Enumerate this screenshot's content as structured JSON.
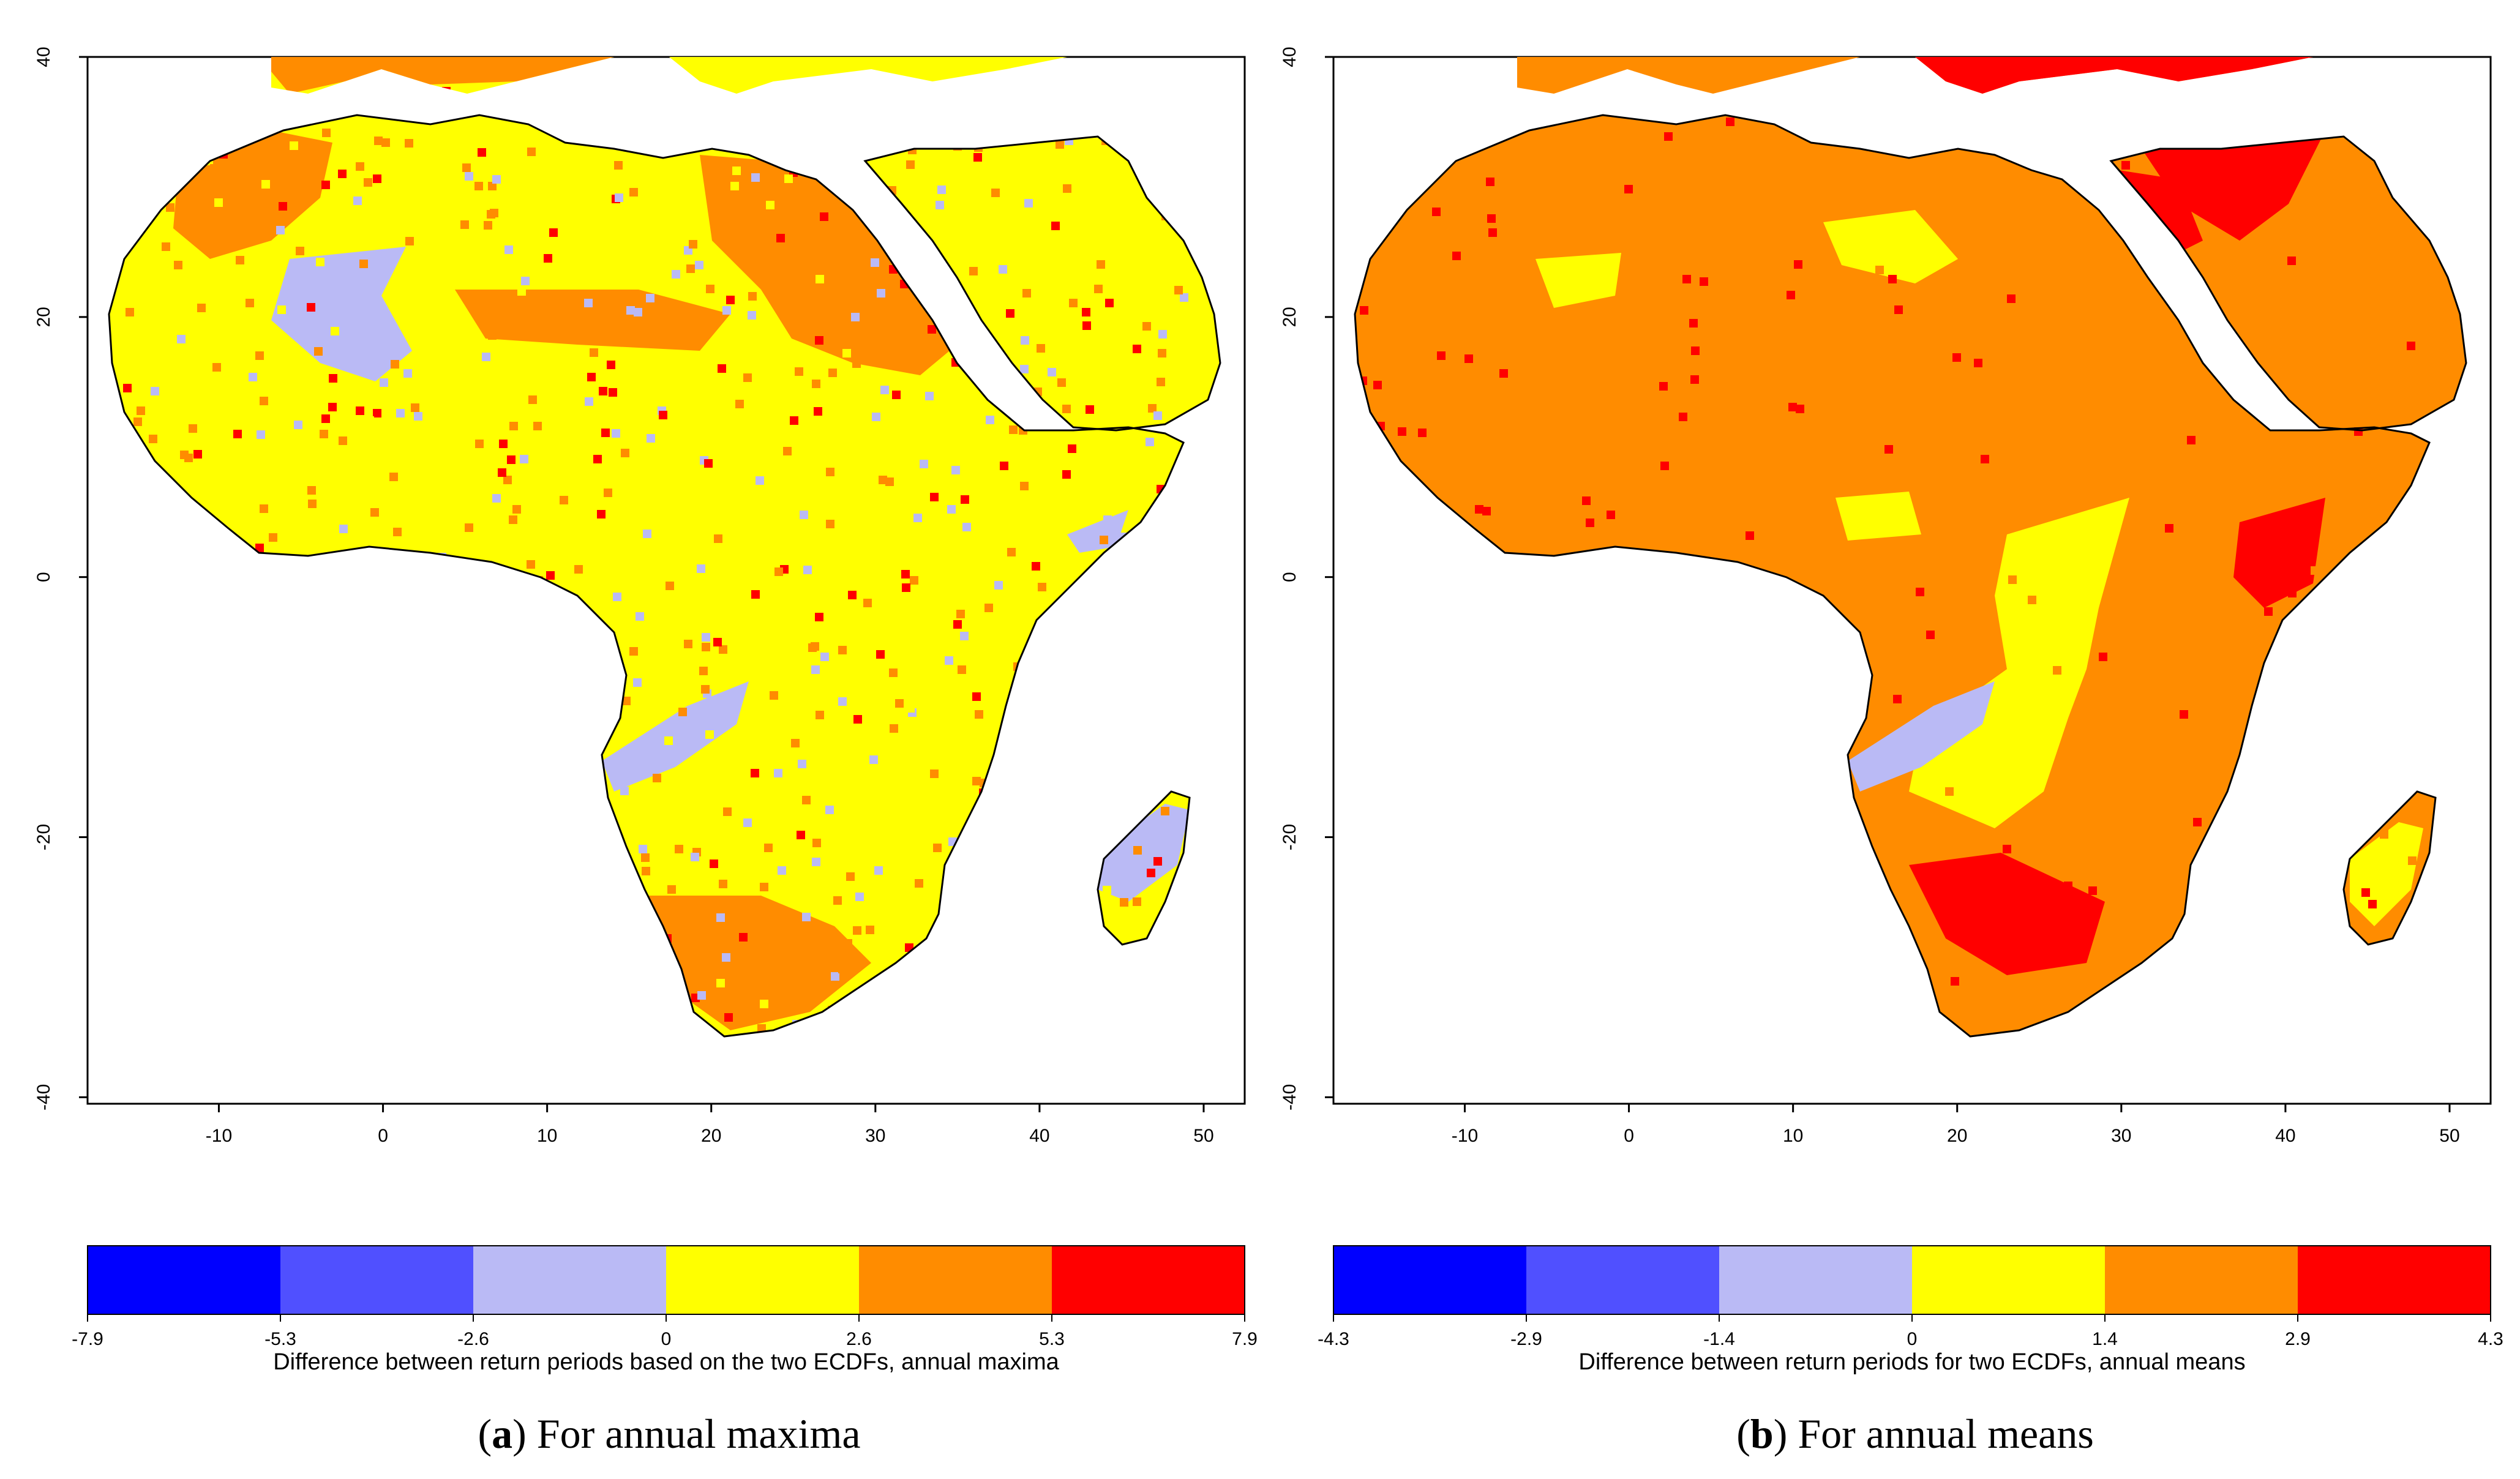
{
  "colors": {
    "land_ocean_background": "#ffffff",
    "coast": "#000000",
    "blue_dark": "#0000ff",
    "blue_mid": "#5050ff",
    "lavender": "#babaf5",
    "yellow": "#ffff00",
    "orange": "#ff8c00",
    "red": "#ff0000"
  },
  "axes": {
    "x_ticks": [
      "-10",
      "0",
      "10",
      "20",
      "30",
      "40",
      "50"
    ],
    "y_ticks": [
      "40",
      "20",
      "0",
      "-20",
      "-40"
    ],
    "x_range": [
      -18,
      52.5
    ],
    "y_range": [
      -40.5,
      40
    ]
  },
  "panels": [
    {
      "id": "a",
      "caption_label": "a",
      "caption_text": "For annual maxima",
      "colorbar_title": "Difference between return periods based on the two ECDFs, annual maxima",
      "colorbar_ticks": [
        "-7.9",
        "-5.3",
        "-2.6",
        "0",
        "2.6",
        "5.3",
        "7.9"
      ],
      "colorbar_colors": [
        "#0000ff",
        "#5050ff",
        "#babaf5",
        "#ffff00",
        "#ff8c00",
        "#ff0000"
      ],
      "base_fill": "#ffff00",
      "regions": [
        {
          "name": "mediterranean-north-coast",
          "color": "#ff8c00"
        },
        {
          "name": "maghreb",
          "color": "#ff8c00"
        },
        {
          "name": "egypt-libya",
          "color": "#ff8c00"
        },
        {
          "name": "sahel-band",
          "color": "#ff8c00"
        },
        {
          "name": "south-africa",
          "color": "#ff8c00"
        },
        {
          "name": "sahara-west-lavender",
          "color": "#babaf5"
        },
        {
          "name": "angola-lavender",
          "color": "#babaf5"
        },
        {
          "name": "madagascar-lavender",
          "color": "#babaf5"
        },
        {
          "name": "horn-lavender",
          "color": "#babaf5"
        }
      ]
    },
    {
      "id": "b",
      "caption_label": "b",
      "caption_text": "For annual means",
      "colorbar_title": "Difference between return periods for two ECDFs,  annual means",
      "colorbar_ticks": [
        "-4.3",
        "-2.9",
        "-1.4",
        "0",
        "1.4",
        "2.9",
        "4.3"
      ],
      "colorbar_colors": [
        "#0000ff",
        "#5050ff",
        "#babaf5",
        "#ffff00",
        "#ff8c00",
        "#ff0000"
      ],
      "base_fill": "#ff8c00",
      "regions": [
        {
          "name": "turkey-levant",
          "color": "#ff0000"
        },
        {
          "name": "nile-delta",
          "color": "#ff0000"
        },
        {
          "name": "kalahari",
          "color": "#ff0000"
        },
        {
          "name": "kenya-coast",
          "color": "#ff0000"
        },
        {
          "name": "central-yellow-band",
          "color": "#ffff00"
        },
        {
          "name": "sahara-yellow-patches",
          "color": "#ffff00"
        },
        {
          "name": "madagascar-yellow",
          "color": "#ffff00"
        },
        {
          "name": "angola-lavender",
          "color": "#babaf5"
        }
      ]
    }
  ]
}
